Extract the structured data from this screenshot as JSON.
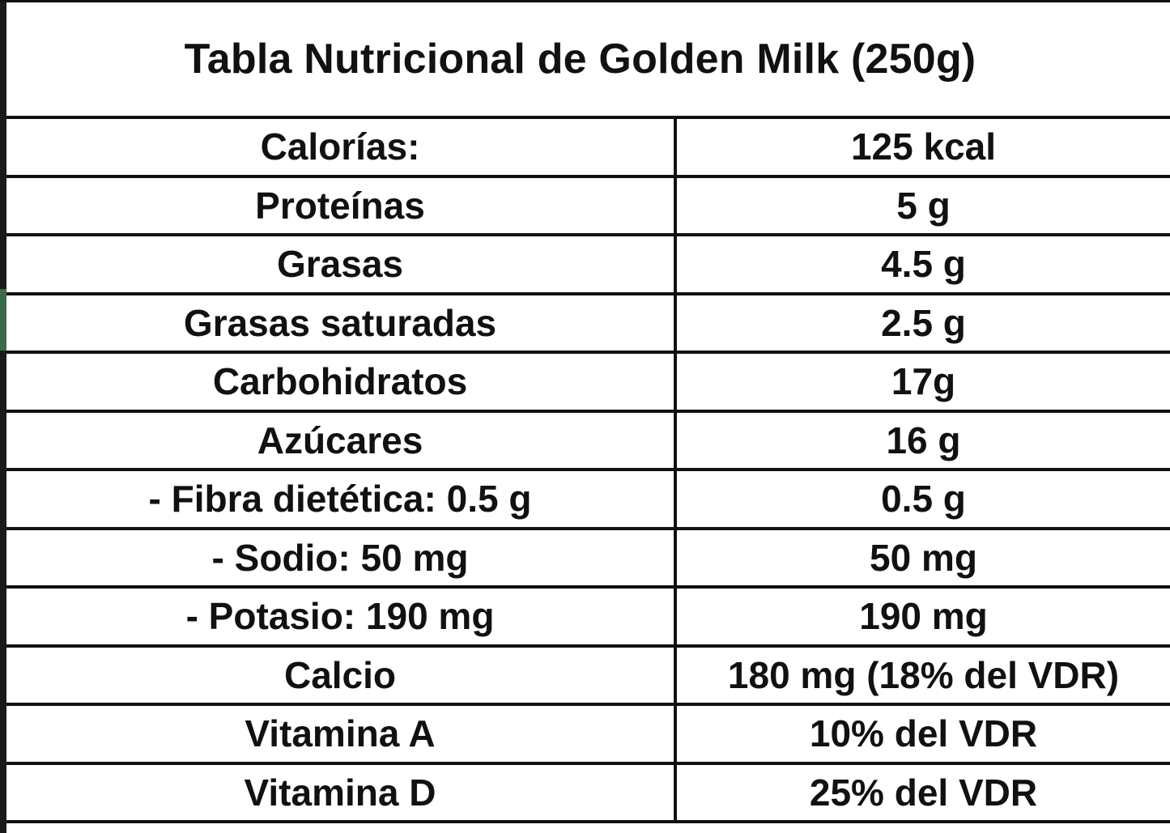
{
  "title": "Tabla Nutricional de Golden Milk (250g)",
  "rows": [
    {
      "label": "Calorías:",
      "value": "125 kcal"
    },
    {
      "label": "Proteínas",
      "value": "5 g"
    },
    {
      "label": "Grasas",
      "value": "4.5 g"
    },
    {
      "label": "Grasas saturadas",
      "value": "2.5 g"
    },
    {
      "label": "Carbohidratos",
      "value": "17g"
    },
    {
      "label": "Azúcares",
      "value": "16 g"
    },
    {
      "label": "- Fibra dietética: 0.5 g",
      "value": "0.5 g"
    },
    {
      "label": "- Sodio: 50 mg",
      "value": "50 mg"
    },
    {
      "label": "- Potasio: 190 mg",
      "value": "190 mg"
    },
    {
      "label": "Calcio",
      "value": "180 mg (18% del VDR)"
    },
    {
      "label": "Vitamina A",
      "value": "10% del VDR"
    },
    {
      "label": "Vitamina D",
      "value": "25% del VDR"
    }
  ],
  "colors": {
    "border": "#111111",
    "background": "#ffffff",
    "accent": "#3d6b46"
  }
}
